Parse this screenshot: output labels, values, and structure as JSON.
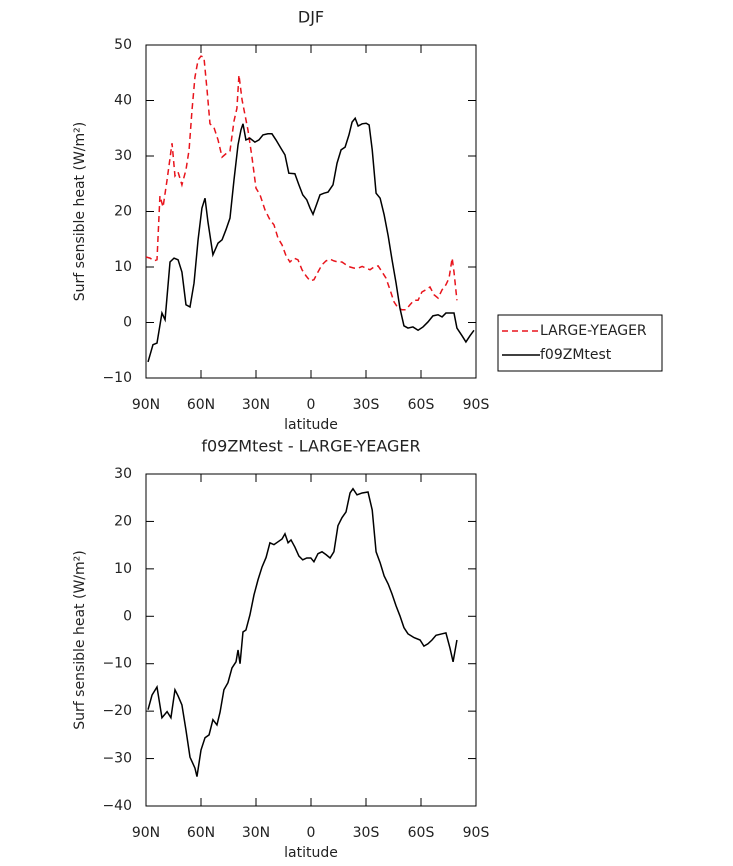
{
  "chart_data": [
    {
      "type": "line",
      "title": "DJF",
      "x_label": "latitude",
      "y_label": "Surf sensible heat (W/m²)",
      "xlim": [
        90,
        -90
      ],
      "ylim": [
        -10,
        50
      ],
      "xticks": [
        {
          "value": 90,
          "label": "90N"
        },
        {
          "value": 60,
          "label": "60N"
        },
        {
          "value": 30,
          "label": "30N"
        },
        0,
        {
          "value": -30,
          "label": "30S"
        },
        {
          "value": -60,
          "label": "60S"
        },
        {
          "value": -90,
          "label": "90S"
        }
      ],
      "yticks": [
        {
          "value": -10,
          "label": "−10"
        },
        0,
        10,
        20,
        30,
        40,
        50
      ],
      "legend": "right",
      "series": [
        {
          "name": "LARGE-YEAGER",
          "color": "#e8141c",
          "line_style": "dashed",
          "x": [
            90,
            87.8,
            85.6,
            84,
            82.4,
            80.7,
            78.5,
            75.8,
            74.2,
            72.5,
            70.4,
            68.2,
            66.5,
            64.9,
            63.3,
            61.6,
            60,
            58.4,
            56.7,
            55.1,
            52.9,
            50.7,
            48.5,
            46.4,
            44.2,
            42,
            40.4,
            39.3,
            37.6,
            36,
            34.4,
            32.2,
            30,
            27.8,
            25.1,
            22.4,
            20.2,
            18,
            15.8,
            13.6,
            11.5,
            9.3,
            7.1,
            4.9,
            2.7,
            0.5,
            -1.6,
            -3.8,
            -6,
            -8.2,
            -10.4,
            -12.5,
            -14.7,
            -16.9,
            -19.1,
            -21.3,
            -23.5,
            -25.7,
            -27.9,
            -30.1,
            -32.2,
            -34.4,
            -36.6,
            -38.8,
            -40.9,
            -43.1,
            -45.3,
            -47.5,
            -49.6,
            -51.8,
            -54,
            -56.2,
            -58.4,
            -60.5,
            -62.7,
            -64.9,
            -67.1,
            -69.3,
            -71.5,
            -73.6,
            -75.3,
            -77,
            -78,
            -79.6
          ],
          "values": [
            11.8,
            11.6,
            11.1,
            11.3,
            22.8,
            20.8,
            25.7,
            32.3,
            26.4,
            27.1,
            24.8,
            27.5,
            31.1,
            38.3,
            44.2,
            47.3,
            48,
            47.8,
            41.9,
            35.8,
            35.1,
            32.9,
            29.8,
            30.4,
            30.9,
            36.3,
            38.6,
            44.6,
            40.1,
            37.4,
            34.7,
            29.8,
            24.2,
            23,
            20.3,
            18.5,
            17.6,
            15.2,
            14,
            12,
            10.9,
            11.6,
            11.3,
            9.5,
            8.4,
            7.5,
            7.7,
            9.1,
            10.4,
            11.1,
            11.4,
            11.1,
            10.9,
            10.9,
            10.4,
            10,
            9.8,
            9.8,
            10.1,
            9.8,
            9.5,
            10,
            10.2,
            9.1,
            8,
            5.9,
            3.7,
            2.6,
            2.3,
            2.3,
            3.2,
            4,
            4,
            5.5,
            5.9,
            6.4,
            5,
            4.4,
            5.9,
            6.8,
            8,
            11.6,
            9.1,
            4
          ]
        },
        {
          "name": "f09ZMtest",
          "color": "#000000",
          "line_style": "solid",
          "x": [
            88.9,
            86.2,
            84,
            81.3,
            79.6,
            76.9,
            74.7,
            72.5,
            70.4,
            68.2,
            66,
            63.8,
            61.6,
            59.5,
            57.8,
            56.2,
            53.5,
            50.7,
            48.5,
            46.4,
            44.2,
            42,
            39.8,
            38.2,
            37.1,
            35.5,
            33.3,
            30.6,
            28.4,
            26.2,
            23.5,
            21.3,
            19.1,
            16.4,
            14.2,
            12.1,
            8.8,
            6.6,
            4.5,
            2.3,
            0.5,
            -1.1,
            -3.3,
            -4.9,
            -7.1,
            -9.3,
            -12,
            -14.2,
            -16.4,
            -18.6,
            -20.7,
            -22.4,
            -24.1,
            -25.7,
            -27.9,
            -30.1,
            -31.7,
            -33.4,
            -35.5,
            -37.7,
            -39.9,
            -42.1,
            -44.2,
            -46.4,
            -48.5,
            -50.7,
            -52.9,
            -55.6,
            -58.4,
            -61.1,
            -63.8,
            -66.5,
            -69.3,
            -71.5,
            -73.6,
            -75.8,
            -78,
            -79.6,
            -82.4,
            -84.5,
            -86.7,
            -88.9
          ],
          "values": [
            -7.1,
            -4,
            -3.7,
            1.7,
            0.5,
            10.9,
            11.6,
            11.3,
            9.1,
            3.2,
            2.8,
            7.1,
            14.9,
            20.6,
            22.4,
            18.1,
            12.2,
            14.3,
            14.9,
            16.7,
            18.8,
            25.7,
            32,
            34.7,
            35.8,
            32.9,
            33.2,
            32.5,
            32.9,
            33.8,
            34,
            34,
            32.9,
            31.4,
            30.2,
            26.9,
            26.8,
            24.8,
            23,
            22.1,
            20.6,
            19.5,
            21.5,
            23,
            23.3,
            23.5,
            24.8,
            28.7,
            31.1,
            31.6,
            33.8,
            36.1,
            36.8,
            35.4,
            35.8,
            35.9,
            35.6,
            31.1,
            23.3,
            22.4,
            19.4,
            15.6,
            11.3,
            7.1,
            2.6,
            -0.6,
            -1,
            -0.8,
            -1.4,
            -0.8,
            0.1,
            1.2,
            1.4,
            1,
            1.7,
            1.7,
            1.7,
            -1,
            -2.4,
            -3.5,
            -2.4,
            -1.4
          ]
        }
      ]
    },
    {
      "type": "line",
      "title": "f09ZMtest - LARGE-YEAGER",
      "x_label": "latitude",
      "y_label": "Surf sensible heat (W/m²)",
      "xlim": [
        90,
        -90
      ],
      "ylim": [
        -40,
        30
      ],
      "xticks": [
        {
          "value": 90,
          "label": "90N"
        },
        {
          "value": 60,
          "label": "60N"
        },
        {
          "value": 30,
          "label": "30N"
        },
        0,
        {
          "value": -30,
          "label": "30S"
        },
        {
          "value": -60,
          "label": "60S"
        },
        {
          "value": -90,
          "label": "90S"
        }
      ],
      "yticks": [
        {
          "value": -40,
          "label": "−40"
        },
        {
          "value": -30,
          "label": "−30"
        },
        {
          "value": -20,
          "label": "−20"
        },
        {
          "value": -10,
          "label": "−10"
        },
        0,
        10,
        20,
        30
      ],
      "color": "#000000",
      "line_style": "solid",
      "x": [
        88.9,
        86.7,
        84,
        81.3,
        78.5,
        76.4,
        74.2,
        72.5,
        70.4,
        68.2,
        66,
        63.3,
        62.2,
        60,
        57.8,
        55.6,
        53.5,
        51.3,
        49.6,
        47.5,
        45.3,
        43.1,
        40.9,
        39.8,
        38.7,
        37.1,
        35.5,
        33.3,
        31.1,
        28.9,
        26.7,
        24.5,
        22.4,
        20.2,
        18,
        15.8,
        14.2,
        12.5,
        10.9,
        8.8,
        6.6,
        4.5,
        2.3,
        0.1,
        -1.6,
        -3.8,
        -6,
        -8.2,
        -10.4,
        -12.5,
        -14.7,
        -16.9,
        -19.1,
        -21.3,
        -22.9,
        -25.1,
        -27.9,
        -31.1,
        -33.4,
        -35.5,
        -37.7,
        -39.9,
        -42.1,
        -44.2,
        -46.4,
        -48.5,
        -50.7,
        -52.9,
        -56.2,
        -59.5,
        -61.6,
        -63.8,
        -66,
        -68.2,
        -71.5,
        -73.6,
        -75.8,
        -77.5,
        -79.6
      ],
      "values": [
        -19.7,
        -16.6,
        -14.9,
        -21.4,
        -20.1,
        -21.4,
        -15.5,
        -16.8,
        -18.7,
        -24,
        -29.7,
        -32,
        -33.8,
        -28.2,
        -25.6,
        -25,
        -21.8,
        -22.9,
        -20.2,
        -15.5,
        -14,
        -10.9,
        -9.6,
        -7.1,
        -10,
        -3.3,
        -2.9,
        0.3,
        4.5,
        7.7,
        10.4,
        12.4,
        15.5,
        15.1,
        15.7,
        16.3,
        17.4,
        15.5,
        16.1,
        14.6,
        12.7,
        11.9,
        12.3,
        12.3,
        11.5,
        13.2,
        13.6,
        13,
        12.3,
        13.6,
        19.1,
        20.8,
        22,
        26,
        26.9,
        25.6,
        26,
        26.2,
        22.4,
        13.6,
        11.3,
        8.5,
        6.8,
        4.7,
        2.2,
        0.1,
        -2.4,
        -3.7,
        -4.5,
        -5,
        -6.3,
        -5.8,
        -5,
        -4,
        -3.7,
        -3.5,
        -6.7,
        -9.6,
        -5
      ]
    }
  ]
}
